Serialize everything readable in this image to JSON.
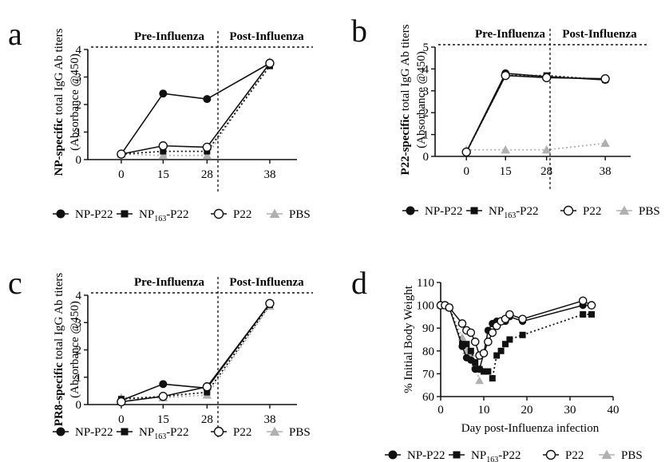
{
  "chart_data": [
    {
      "panel": "a",
      "type": "line",
      "ylabel_bold": "NP-specific",
      "ylabel_rest": " total IgG Ab titers",
      "ylabel2": "(Absorbance @450)",
      "x_ticks": [
        "0",
        "15",
        "28",
        "38"
      ],
      "ylim": [
        0,
        4
      ],
      "y_ticks": [
        0,
        1,
        2,
        3,
        4
      ],
      "phase_labels": [
        "Pre-Influenza",
        "Post-Influenza"
      ],
      "series": [
        {
          "name": "NP-P22",
          "marker": "filled-circle",
          "line": "solid",
          "values": [
            0.2,
            2.4,
            2.2,
            3.5
          ]
        },
        {
          "name": "NP163-P22",
          "marker": "filled-square",
          "line": "dotted",
          "values": [
            0.2,
            0.3,
            0.3,
            3.4
          ]
        },
        {
          "name": "P22",
          "marker": "open-circle",
          "line": "solid",
          "values": [
            0.2,
            0.5,
            0.45,
            3.5
          ]
        },
        {
          "name": "PBS",
          "marker": "gray-triangle",
          "line": "dotted",
          "values": [
            0.2,
            0.15,
            0.15,
            3.55
          ]
        }
      ]
    },
    {
      "panel": "b",
      "type": "line",
      "ylabel_bold": "P22-specific",
      "ylabel_rest": " total IgG Ab titers",
      "ylabel2": "(Absorbance @450)",
      "x_ticks": [
        "0",
        "15",
        "28",
        "38"
      ],
      "ylim": [
        0,
        5
      ],
      "y_ticks": [
        0,
        1,
        2,
        3,
        4,
        5
      ],
      "phase_labels": [
        "Pre-Influenza",
        "Post-Influenza"
      ],
      "series": [
        {
          "name": "NP-P22",
          "marker": "filled-circle",
          "line": "solid",
          "values": [
            0.2,
            3.8,
            3.65,
            3.5
          ]
        },
        {
          "name": "NP163-P22",
          "marker": "filled-square",
          "line": "dotted",
          "values": [
            0.2,
            3.7,
            3.7,
            3.5
          ]
        },
        {
          "name": "P22",
          "marker": "open-circle",
          "line": "solid",
          "values": [
            0.2,
            3.7,
            3.6,
            3.55
          ]
        },
        {
          "name": "PBS",
          "marker": "gray-triangle",
          "line": "dotted",
          "values": [
            0.3,
            0.3,
            0.3,
            0.6
          ]
        }
      ]
    },
    {
      "panel": "c",
      "type": "line",
      "ylabel_bold": "PR8-specific",
      "ylabel_rest": " total IgG Ab titers",
      "ylabel2": "(Absorbance @450)",
      "x_ticks": [
        "0",
        "15",
        "28",
        "38"
      ],
      "ylim": [
        0,
        4
      ],
      "y_ticks": [
        0,
        1,
        2,
        3,
        4
      ],
      "phase_labels": [
        "Pre-Influenza",
        "Post-Influenza"
      ],
      "series": [
        {
          "name": "NP-P22",
          "marker": "filled-circle",
          "line": "solid",
          "values": [
            0.15,
            0.75,
            0.6,
            3.7
          ]
        },
        {
          "name": "NP163-P22",
          "marker": "filled-square",
          "line": "dotted",
          "values": [
            0.2,
            0.3,
            0.45,
            3.65
          ]
        },
        {
          "name": "P22",
          "marker": "open-circle",
          "line": "solid",
          "values": [
            0.1,
            0.3,
            0.65,
            3.7
          ]
        },
        {
          "name": "PBS",
          "marker": "gray-triangle",
          "line": "dotted",
          "values": [
            0.25,
            0.25,
            0.35,
            3.6
          ]
        }
      ]
    },
    {
      "panel": "d",
      "type": "line",
      "xlabel": "Day post-Influenza infection",
      "ylabel": "% Initial Body Weight",
      "xlim": [
        0,
        40
      ],
      "x_ticks": [
        0,
        10,
        20,
        30,
        40
      ],
      "ylim": [
        60,
        110
      ],
      "y_ticks": [
        60,
        70,
        80,
        90,
        100,
        110
      ],
      "series": [
        {
          "name": "NP-P22",
          "marker": "filled-circle",
          "line": "solid",
          "x": [
            0,
            1,
            2,
            5,
            6,
            7,
            8,
            9,
            10,
            11,
            12,
            13,
            14,
            15,
            16,
            19,
            33,
            35
          ],
          "y": [
            100,
            100,
            99,
            82,
            77,
            76,
            72,
            72,
            79,
            89,
            92,
            93,
            93,
            93,
            95,
            93,
            100,
            100
          ]
        },
        {
          "name": "NP163-P22",
          "marker": "filled-square",
          "line": "dotted",
          "x": [
            0,
            1,
            2,
            5,
            6,
            7,
            8,
            9,
            10,
            11,
            12,
            13,
            14,
            15,
            16,
            19,
            33,
            35
          ],
          "y": [
            100,
            100,
            99,
            83,
            83,
            80,
            75,
            72,
            71,
            71,
            68,
            78,
            80,
            83,
            85,
            87,
            96,
            96
          ]
        },
        {
          "name": "P22",
          "marker": "open-circle",
          "line": "solid",
          "x": [
            0,
            1,
            2,
            5,
            6,
            7,
            8,
            9,
            10,
            11,
            12,
            13,
            14,
            15,
            16,
            19,
            33,
            35
          ],
          "y": [
            100,
            100,
            99,
            92,
            89,
            88,
            84,
            78,
            79,
            84,
            88,
            91,
            93,
            94,
            96,
            94,
            102,
            100
          ]
        },
        {
          "name": "PBS",
          "marker": "gray-triangle",
          "line": "dotted",
          "x": [
            0,
            1,
            2,
            5,
            6,
            7,
            8,
            9
          ],
          "y": [
            100,
            100,
            99,
            86,
            80,
            79,
            74,
            67
          ]
        }
      ]
    }
  ],
  "panel_letters": [
    "a",
    "b",
    "c",
    "d"
  ],
  "legend": [
    {
      "label": "NP-P22",
      "sub": "",
      "marker": "filled-circle"
    },
    {
      "label": "NP",
      "sub": "163",
      "tail": "-P22",
      "marker": "filled-square"
    },
    {
      "label": "P22",
      "sub": "",
      "marker": "open-circle"
    },
    {
      "label": "PBS",
      "sub": "",
      "marker": "gray-triangle"
    }
  ],
  "colors": {
    "black": "#111111",
    "gray": "#b0b0b0",
    "white": "#ffffff"
  }
}
